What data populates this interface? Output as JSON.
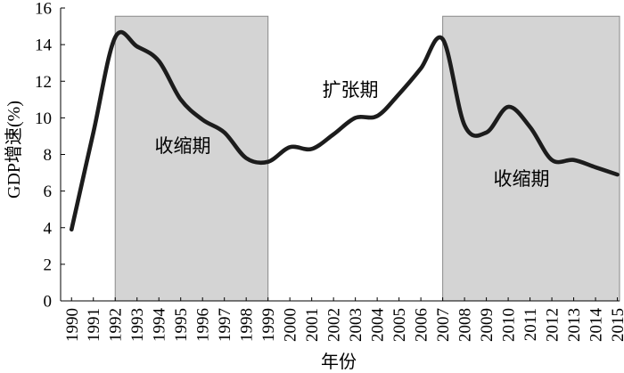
{
  "chart_data": {
    "type": "line",
    "title": "",
    "xlabel": "年份",
    "ylabel": "GDP增速(%)",
    "x": [
      1990,
      1991,
      1992,
      1993,
      1994,
      1995,
      1996,
      1997,
      1998,
      1999,
      2000,
      2001,
      2002,
      2003,
      2004,
      2005,
      2006,
      2007,
      2008,
      2009,
      2010,
      2011,
      2012,
      2013,
      2014,
      2015
    ],
    "series": [
      {
        "values": [
          3.9,
          9.2,
          14.4,
          13.9,
          13.1,
          11.0,
          9.9,
          9.2,
          7.8,
          7.6,
          8.4,
          8.3,
          9.1,
          10.0,
          10.1,
          11.3,
          12.7,
          14.3,
          9.6,
          9.2,
          10.6,
          9.5,
          7.7,
          7.7,
          7.3,
          6.9
        ]
      }
    ],
    "xlim": [
      1989.5,
      2015.1
    ],
    "ylim": [
      0,
      16
    ],
    "yticks": [
      0,
      2,
      4,
      6,
      8,
      10,
      12,
      14,
      16
    ],
    "grid": false,
    "legend": "none",
    "shaded_regions": [
      {
        "from": 1992,
        "to": 1999,
        "label": "收缩期"
      },
      {
        "from": 2007,
        "to": 2015,
        "label": "收缩期"
      }
    ],
    "annotations": [
      "扩张期"
    ],
    "colors": {
      "line": "#1c1c1c",
      "shade": "#d4d4d4",
      "shade_border": "#8a8a8a",
      "axis": "#000000"
    }
  }
}
